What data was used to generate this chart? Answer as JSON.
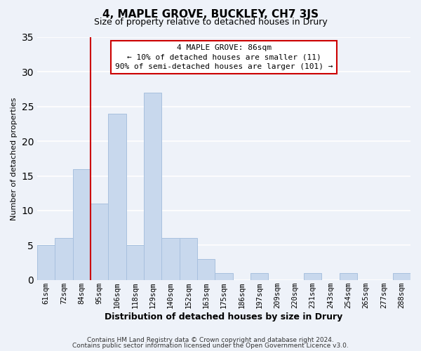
{
  "title": "4, MAPLE GROVE, BUCKLEY, CH7 3JS",
  "subtitle": "Size of property relative to detached houses in Drury",
  "xlabel": "Distribution of detached houses by size in Drury",
  "ylabel": "Number of detached properties",
  "bar_color": "#c8d8ed",
  "bar_edge_color": "#a8c0de",
  "bin_labels": [
    "61sqm",
    "72sqm",
    "84sqm",
    "95sqm",
    "106sqm",
    "118sqm",
    "129sqm",
    "140sqm",
    "152sqm",
    "163sqm",
    "175sqm",
    "186sqm",
    "197sqm",
    "209sqm",
    "220sqm",
    "231sqm",
    "243sqm",
    "254sqm",
    "265sqm",
    "277sqm",
    "288sqm"
  ],
  "bar_heights": [
    5,
    6,
    16,
    11,
    24,
    5,
    27,
    6,
    6,
    3,
    1,
    0,
    1,
    0,
    0,
    1,
    0,
    1,
    0,
    0,
    1
  ],
  "ylim": [
    0,
    35
  ],
  "yticks": [
    0,
    5,
    10,
    15,
    20,
    25,
    30,
    35
  ],
  "vline_color": "#cc0000",
  "annotation_title": "4 MAPLE GROVE: 86sqm",
  "annotation_line1": "← 10% of detached houses are smaller (11)",
  "annotation_line2": "90% of semi-detached houses are larger (101) →",
  "annotation_box_facecolor": "#ffffff",
  "annotation_box_edgecolor": "#cc0000",
  "footer1": "Contains HM Land Registry data © Crown copyright and database right 2024.",
  "footer2": "Contains public sector information licensed under the Open Government Licence v3.0.",
  "background_color": "#eef2f9",
  "grid_color": "#ffffff",
  "title_fontsize": 11,
  "subtitle_fontsize": 9,
  "ylabel_fontsize": 8,
  "xlabel_fontsize": 9,
  "tick_fontsize": 7.5,
  "annotation_fontsize": 8,
  "footer_fontsize": 6.5
}
